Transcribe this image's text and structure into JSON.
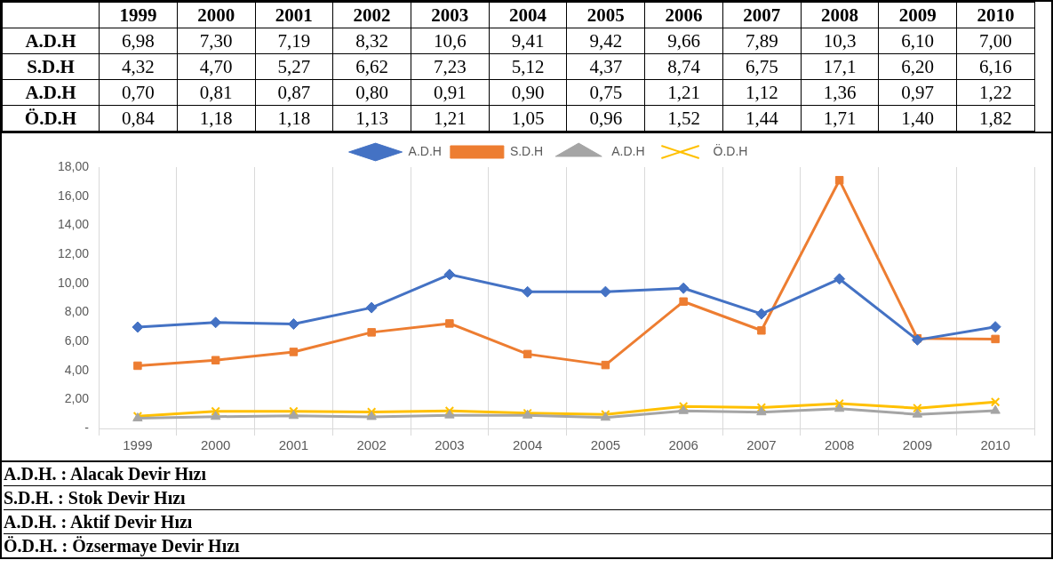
{
  "chart_data": {
    "type": "line",
    "categories": [
      "1999",
      "2000",
      "2001",
      "2002",
      "2003",
      "2004",
      "2005",
      "2006",
      "2007",
      "2008",
      "2009",
      "2010"
    ],
    "series": [
      {
        "name": "A.D.H",
        "color": "#4472c4",
        "marker": "diamond",
        "values": [
          6.98,
          7.3,
          7.19,
          8.32,
          10.6,
          9.41,
          9.42,
          9.66,
          7.89,
          10.3,
          6.1,
          7.0
        ],
        "value_labels": [
          "6,98",
          "7,30",
          "7,19",
          "8,32",
          "10,6",
          "9,41",
          "9,42",
          "9,66",
          "7,89",
          "10,3",
          "6,10",
          "7,00"
        ]
      },
      {
        "name": "S.D.H",
        "color": "#ed7d31",
        "marker": "square",
        "values": [
          4.32,
          4.7,
          5.27,
          6.62,
          7.23,
          5.12,
          4.37,
          8.74,
          6.75,
          17.1,
          6.2,
          6.16
        ],
        "value_labels": [
          "4,32",
          "4,70",
          "5,27",
          "6,62",
          "7,23",
          "5,12",
          "4,37",
          "8,74",
          "6,75",
          "17,1",
          "6,20",
          "6,16"
        ]
      },
      {
        "name": "A.D.H",
        "color": "#a5a5a5",
        "marker": "triangle",
        "values": [
          0.7,
          0.81,
          0.87,
          0.8,
          0.91,
          0.9,
          0.75,
          1.21,
          1.12,
          1.36,
          0.97,
          1.22
        ],
        "value_labels": [
          "0,70",
          "0,81",
          "0,87",
          "0,80",
          "0,91",
          "0,90",
          "0,75",
          "1,21",
          "1,12",
          "1,36",
          "0,97",
          "1,22"
        ]
      },
      {
        "name": "Ö.D.H",
        "color": "#ffc000",
        "marker": "cross",
        "values": [
          0.84,
          1.18,
          1.18,
          1.13,
          1.21,
          1.05,
          0.96,
          1.52,
          1.44,
          1.71,
          1.4,
          1.82
        ],
        "value_labels": [
          "0,84",
          "1,18",
          "1,18",
          "1,13",
          "1,21",
          "1,05",
          "0,96",
          "1,52",
          "1,44",
          "1,71",
          "1,40",
          "1,82"
        ]
      }
    ],
    "ylim": [
      0,
      18
    ],
    "yticks": [
      {
        "value": 0,
        "label": "-"
      },
      {
        "value": 2,
        "label": "2,00"
      },
      {
        "value": 4,
        "label": "4,00"
      },
      {
        "value": 6,
        "label": "6,00"
      },
      {
        "value": 8,
        "label": "8,00"
      },
      {
        "value": 10,
        "label": "10,00"
      },
      {
        "value": 12,
        "label": "12,00"
      },
      {
        "value": 14,
        "label": "14,00"
      },
      {
        "value": 16,
        "label": "16,00"
      },
      {
        "value": 18,
        "label": "18,00"
      }
    ],
    "grid": "x",
    "legend": "top",
    "line_style": "solid",
    "annotations": [
      "A.D.H. : Alacak Devir Hızı",
      "S.D.H. : Stok Devir Hızı",
      "A.D.H. : Aktif Devir Hızı",
      "Ö.D.H. : Özsermaye Devir Hızı"
    ]
  }
}
